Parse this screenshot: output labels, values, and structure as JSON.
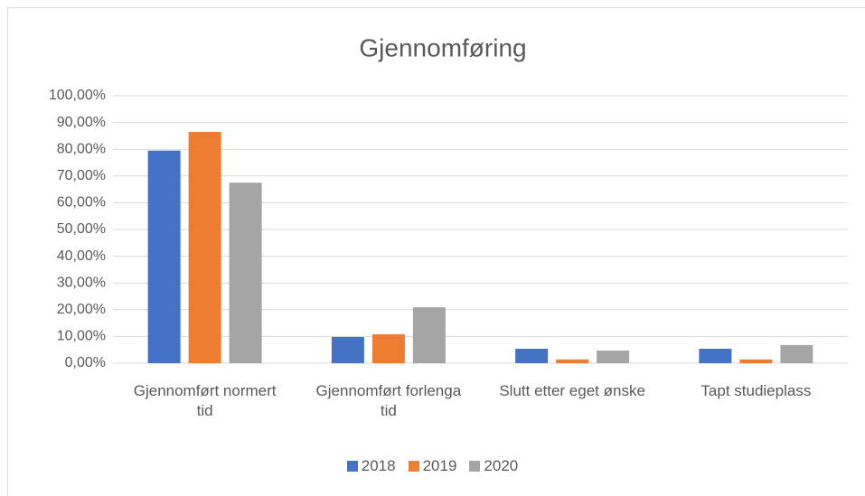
{
  "chart_data": {
    "type": "bar",
    "title": "Gjennomføring",
    "categories": [
      "Gjennomført normert tid",
      "Gjennomført forlenga tid",
      "Slutt etter eget ønske",
      "Tapt studieplass"
    ],
    "series": [
      {
        "name": "2018",
        "color": "#4472c4",
        "values": [
          79.5,
          9.8,
          5.4,
          5.4
        ]
      },
      {
        "name": "2019",
        "color": "#ed7d31",
        "values": [
          86.5,
          10.8,
          1.4,
          1.4
        ]
      },
      {
        "name": "2020",
        "color": "#a5a5a5",
        "values": [
          67.5,
          20.9,
          4.7,
          6.8
        ]
      }
    ],
    "ylim": [
      0,
      100
    ],
    "yticks": [
      {
        "value": 0,
        "label": "0,00%"
      },
      {
        "value": 10,
        "label": "10,00%"
      },
      {
        "value": 20,
        "label": "20,00%"
      },
      {
        "value": 30,
        "label": "30,00%"
      },
      {
        "value": 40,
        "label": "40,00%"
      },
      {
        "value": 50,
        "label": "50,00%"
      },
      {
        "value": 60,
        "label": "60,00%"
      },
      {
        "value": 70,
        "label": "70,00%"
      },
      {
        "value": 80,
        "label": "80,00%"
      },
      {
        "value": 90,
        "label": "90,00%"
      },
      {
        "value": 100,
        "label": "100,00%"
      }
    ],
    "grid": true,
    "legend": "bottom"
  }
}
